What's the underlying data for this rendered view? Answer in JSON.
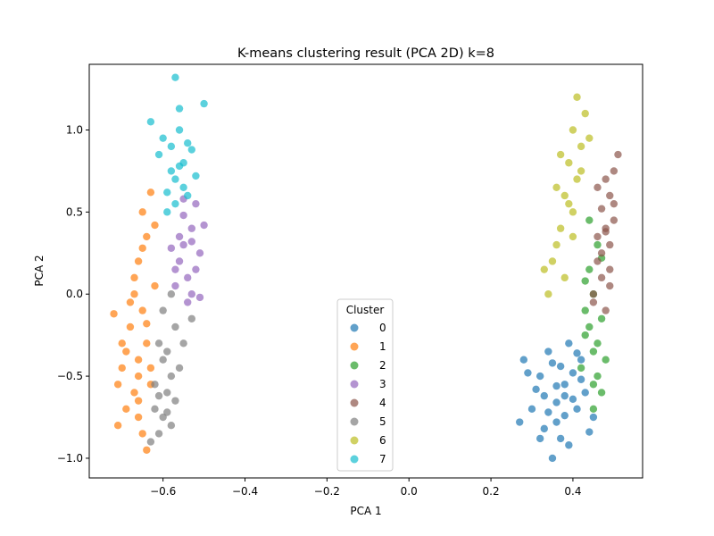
{
  "chart_data": {
    "type": "scatter",
    "title": "K-means clustering result (PCA 2D) k=8",
    "xlabel": "PCA 1",
    "ylabel": "PCA 2",
    "xlim": [
      -0.78,
      0.57
    ],
    "ylim": [
      -1.12,
      1.4
    ],
    "x_ticks": [
      -0.6,
      -0.4,
      -0.2,
      0.0,
      0.2,
      0.4
    ],
    "x_tick_labels": [
      "−0.6",
      "−0.4",
      "−0.2",
      "0.0",
      "0.2",
      "0.4"
    ],
    "y_ticks": [
      -1.0,
      -0.5,
      0.0,
      0.5,
      1.0
    ],
    "y_tick_labels": [
      "−1.0",
      "−0.5",
      "0.0",
      "0.5",
      "1.0"
    ],
    "grid": false,
    "marker_alpha": 0.7,
    "legend": {
      "title": "Cluster",
      "placement": "bottom-center"
    },
    "series": [
      {
        "name": "0",
        "color": "#1f77b4",
        "points": [
          [
            0.35,
            -0.42
          ],
          [
            0.38,
            -0.55
          ],
          [
            0.33,
            -0.62
          ],
          [
            0.41,
            -0.7
          ],
          [
            0.36,
            -0.78
          ],
          [
            0.4,
            -0.48
          ],
          [
            0.32,
            -0.5
          ],
          [
            0.37,
            -0.88
          ],
          [
            0.43,
            -0.6
          ],
          [
            0.3,
            -0.7
          ],
          [
            0.34,
            -0.35
          ],
          [
            0.39,
            -0.3
          ],
          [
            0.42,
            -0.4
          ],
          [
            0.36,
            -0.66
          ],
          [
            0.28,
            -0.4
          ],
          [
            0.27,
            -0.78
          ],
          [
            0.35,
            -1.0
          ],
          [
            0.39,
            -0.92
          ],
          [
            0.44,
            -0.84
          ],
          [
            0.31,
            -0.58
          ],
          [
            0.38,
            -0.74
          ],
          [
            0.33,
            -0.82
          ],
          [
            0.42,
            -0.52
          ],
          [
            0.37,
            -0.44
          ],
          [
            0.4,
            -0.64
          ],
          [
            0.29,
            -0.48
          ],
          [
            0.32,
            -0.88
          ],
          [
            0.45,
            -0.75
          ],
          [
            0.36,
            -0.56
          ],
          [
            0.41,
            -0.36
          ],
          [
            0.34,
            -0.72
          ],
          [
            0.38,
            -0.62
          ]
        ]
      },
      {
        "name": "1",
        "color": "#ff7f0e",
        "points": [
          [
            -0.64,
            -0.3
          ],
          [
            -0.66,
            -0.4
          ],
          [
            -0.68,
            -0.2
          ],
          [
            -0.63,
            -0.55
          ],
          [
            -0.67,
            -0.6
          ],
          [
            -0.7,
            -0.45
          ],
          [
            -0.65,
            -0.1
          ],
          [
            -0.62,
            0.05
          ],
          [
            -0.66,
            0.2
          ],
          [
            -0.64,
            0.35
          ],
          [
            -0.65,
            0.5
          ],
          [
            -0.63,
            0.62
          ],
          [
            -0.69,
            -0.7
          ],
          [
            -0.71,
            -0.55
          ],
          [
            -0.66,
            -0.75
          ],
          [
            -0.65,
            -0.85
          ],
          [
            -0.64,
            -0.95
          ],
          [
            -0.67,
            0.1
          ],
          [
            -0.68,
            -0.05
          ],
          [
            -0.72,
            -0.12
          ],
          [
            -0.7,
            -0.3
          ],
          [
            -0.63,
            -0.45
          ],
          [
            -0.65,
            0.28
          ],
          [
            -0.62,
            0.42
          ],
          [
            -0.66,
            -0.65
          ],
          [
            -0.71,
            -0.8
          ],
          [
            -0.69,
            -0.35
          ],
          [
            -0.64,
            -0.18
          ],
          [
            -0.67,
            0.0
          ],
          [
            -0.66,
            -0.5
          ]
        ]
      },
      {
        "name": "2",
        "color": "#2ca02c",
        "points": [
          [
            0.44,
            -0.2
          ],
          [
            0.45,
            -0.35
          ],
          [
            0.46,
            -0.5
          ],
          [
            0.43,
            -0.1
          ],
          [
            0.47,
            -0.6
          ],
          [
            0.45,
            0.0
          ],
          [
            0.44,
            0.15
          ],
          [
            0.46,
            0.3
          ],
          [
            0.42,
            -0.45
          ],
          [
            0.48,
            -0.4
          ],
          [
            0.45,
            -0.7
          ],
          [
            0.43,
            -0.25
          ],
          [
            0.47,
            -0.15
          ],
          [
            0.44,
            0.45
          ],
          [
            0.46,
            -0.3
          ],
          [
            0.45,
            -0.55
          ],
          [
            0.43,
            0.08
          ],
          [
            0.47,
            0.22
          ]
        ]
      },
      {
        "name": "3",
        "color": "#9467bd",
        "points": [
          [
            -0.55,
            0.3
          ],
          [
            -0.53,
            0.4
          ],
          [
            -0.56,
            0.2
          ],
          [
            -0.54,
            0.1
          ],
          [
            -0.52,
            0.55
          ],
          [
            -0.57,
            0.05
          ],
          [
            -0.55,
            0.48
          ],
          [
            -0.51,
            0.25
          ],
          [
            -0.53,
            0.0
          ],
          [
            -0.56,
            0.35
          ],
          [
            -0.54,
            -0.05
          ],
          [
            -0.5,
            0.42
          ],
          [
            -0.58,
            0.28
          ],
          [
            -0.52,
            0.15
          ],
          [
            -0.55,
            0.58
          ],
          [
            -0.51,
            -0.02
          ],
          [
            -0.57,
            0.15
          ],
          [
            -0.53,
            0.32
          ]
        ]
      },
      {
        "name": "4",
        "color": "#8c564b",
        "points": [
          [
            0.48,
            0.4
          ],
          [
            0.49,
            0.3
          ],
          [
            0.46,
            0.2
          ],
          [
            0.5,
            0.45
          ],
          [
            0.47,
            0.1
          ],
          [
            0.49,
            0.6
          ],
          [
            0.45,
            0.0
          ],
          [
            0.48,
            -0.1
          ],
          [
            0.5,
            0.75
          ],
          [
            0.47,
            0.52
          ],
          [
            0.46,
            0.35
          ],
          [
            0.49,
            0.15
          ],
          [
            0.51,
            0.85
          ],
          [
            0.48,
            0.7
          ],
          [
            0.45,
            -0.05
          ],
          [
            0.47,
            0.25
          ],
          [
            0.5,
            0.55
          ],
          [
            0.46,
            0.65
          ],
          [
            0.49,
            0.05
          ],
          [
            0.48,
            0.38
          ]
        ]
      },
      {
        "name": "5",
        "color": "#7f7f7f",
        "points": [
          [
            -0.6,
            -0.4
          ],
          [
            -0.58,
            -0.5
          ],
          [
            -0.61,
            -0.3
          ],
          [
            -0.59,
            -0.6
          ],
          [
            -0.62,
            -0.7
          ],
          [
            -0.57,
            -0.2
          ],
          [
            -0.6,
            -0.1
          ],
          [
            -0.58,
            -0.8
          ],
          [
            -0.61,
            -0.85
          ],
          [
            -0.63,
            -0.9
          ],
          [
            -0.56,
            -0.45
          ],
          [
            -0.59,
            -0.35
          ],
          [
            -0.62,
            -0.55
          ],
          [
            -0.57,
            -0.65
          ],
          [
            -0.6,
            -0.75
          ],
          [
            -0.55,
            -0.3
          ],
          [
            -0.53,
            -0.15
          ],
          [
            -0.58,
            0.0
          ],
          [
            -0.61,
            -0.62
          ],
          [
            -0.59,
            -0.72
          ]
        ]
      },
      {
        "name": "6",
        "color": "#bcbd22",
        "points": [
          [
            0.4,
            0.5
          ],
          [
            0.38,
            0.6
          ],
          [
            0.41,
            0.7
          ],
          [
            0.37,
            0.4
          ],
          [
            0.39,
            0.8
          ],
          [
            0.42,
            0.9
          ],
          [
            0.4,
            1.0
          ],
          [
            0.43,
            1.1
          ],
          [
            0.41,
            1.2
          ],
          [
            0.36,
            0.3
          ],
          [
            0.35,
            0.2
          ],
          [
            0.38,
            0.1
          ],
          [
            0.34,
            0.0
          ],
          [
            0.39,
            0.55
          ],
          [
            0.42,
            0.75
          ],
          [
            0.37,
            0.85
          ],
          [
            0.44,
            0.95
          ],
          [
            0.36,
            0.65
          ],
          [
            0.33,
            0.15
          ],
          [
            0.4,
            0.35
          ]
        ]
      },
      {
        "name": "7",
        "color": "#17becf",
        "points": [
          [
            -0.57,
            0.7
          ],
          [
            -0.55,
            0.8
          ],
          [
            -0.58,
            0.9
          ],
          [
            -0.56,
            1.0
          ],
          [
            -0.54,
            0.6
          ],
          [
            -0.59,
            0.5
          ],
          [
            -0.56,
            1.13
          ],
          [
            -0.57,
            1.32
          ],
          [
            -0.6,
            0.95
          ],
          [
            -0.53,
            0.88
          ],
          [
            -0.58,
            0.75
          ],
          [
            -0.55,
            0.65
          ],
          [
            -0.61,
            0.85
          ],
          [
            -0.57,
            0.55
          ],
          [
            -0.52,
            0.72
          ],
          [
            -0.5,
            1.16
          ],
          [
            -0.63,
            1.05
          ],
          [
            -0.59,
            0.62
          ],
          [
            -0.54,
            0.92
          ],
          [
            -0.56,
            0.78
          ]
        ]
      }
    ]
  }
}
